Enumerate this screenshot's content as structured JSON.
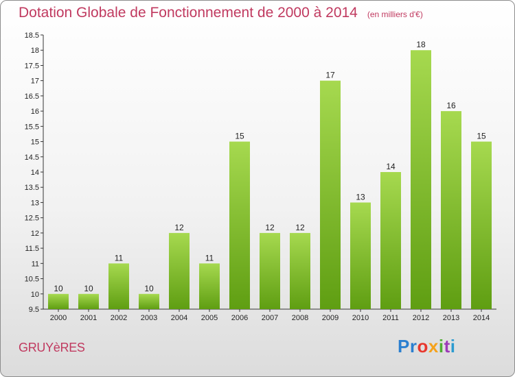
{
  "header": {
    "title": "Dotation Globale de Fonctionnement de 2000 à 2014",
    "unit": "(en milliers d'€)"
  },
  "footer": {
    "commune": "GRUYèRES",
    "logo": [
      "Pr",
      "o",
      "x",
      "i",
      "t",
      "i"
    ]
  },
  "colors": {
    "bar_top": "#a6d94f",
    "bar_bottom": "#5f9e12",
    "title": "#c0395f"
  },
  "chart_data": {
    "type": "bar",
    "categories": [
      "2000",
      "2001",
      "2002",
      "2003",
      "2004",
      "2005",
      "2006",
      "2007",
      "2008",
      "2009",
      "2010",
      "2011",
      "2012",
      "2013",
      "2014"
    ],
    "values": [
      10,
      10,
      11,
      10,
      12,
      11,
      15,
      12,
      12,
      17,
      13,
      14,
      18,
      16,
      15
    ],
    "title": "Dotation Globale de Fonctionnement de 2000 à 2014",
    "subtitle": "(en milliers d'€)",
    "ylim": [
      9.5,
      18.5
    ],
    "yticks": [
      9.5,
      10,
      10.5,
      11,
      11.5,
      12,
      12.5,
      13,
      13.5,
      14,
      14.5,
      15,
      15.5,
      16,
      16.5,
      17,
      17.5,
      18,
      18.5
    ],
    "grid": false
  }
}
